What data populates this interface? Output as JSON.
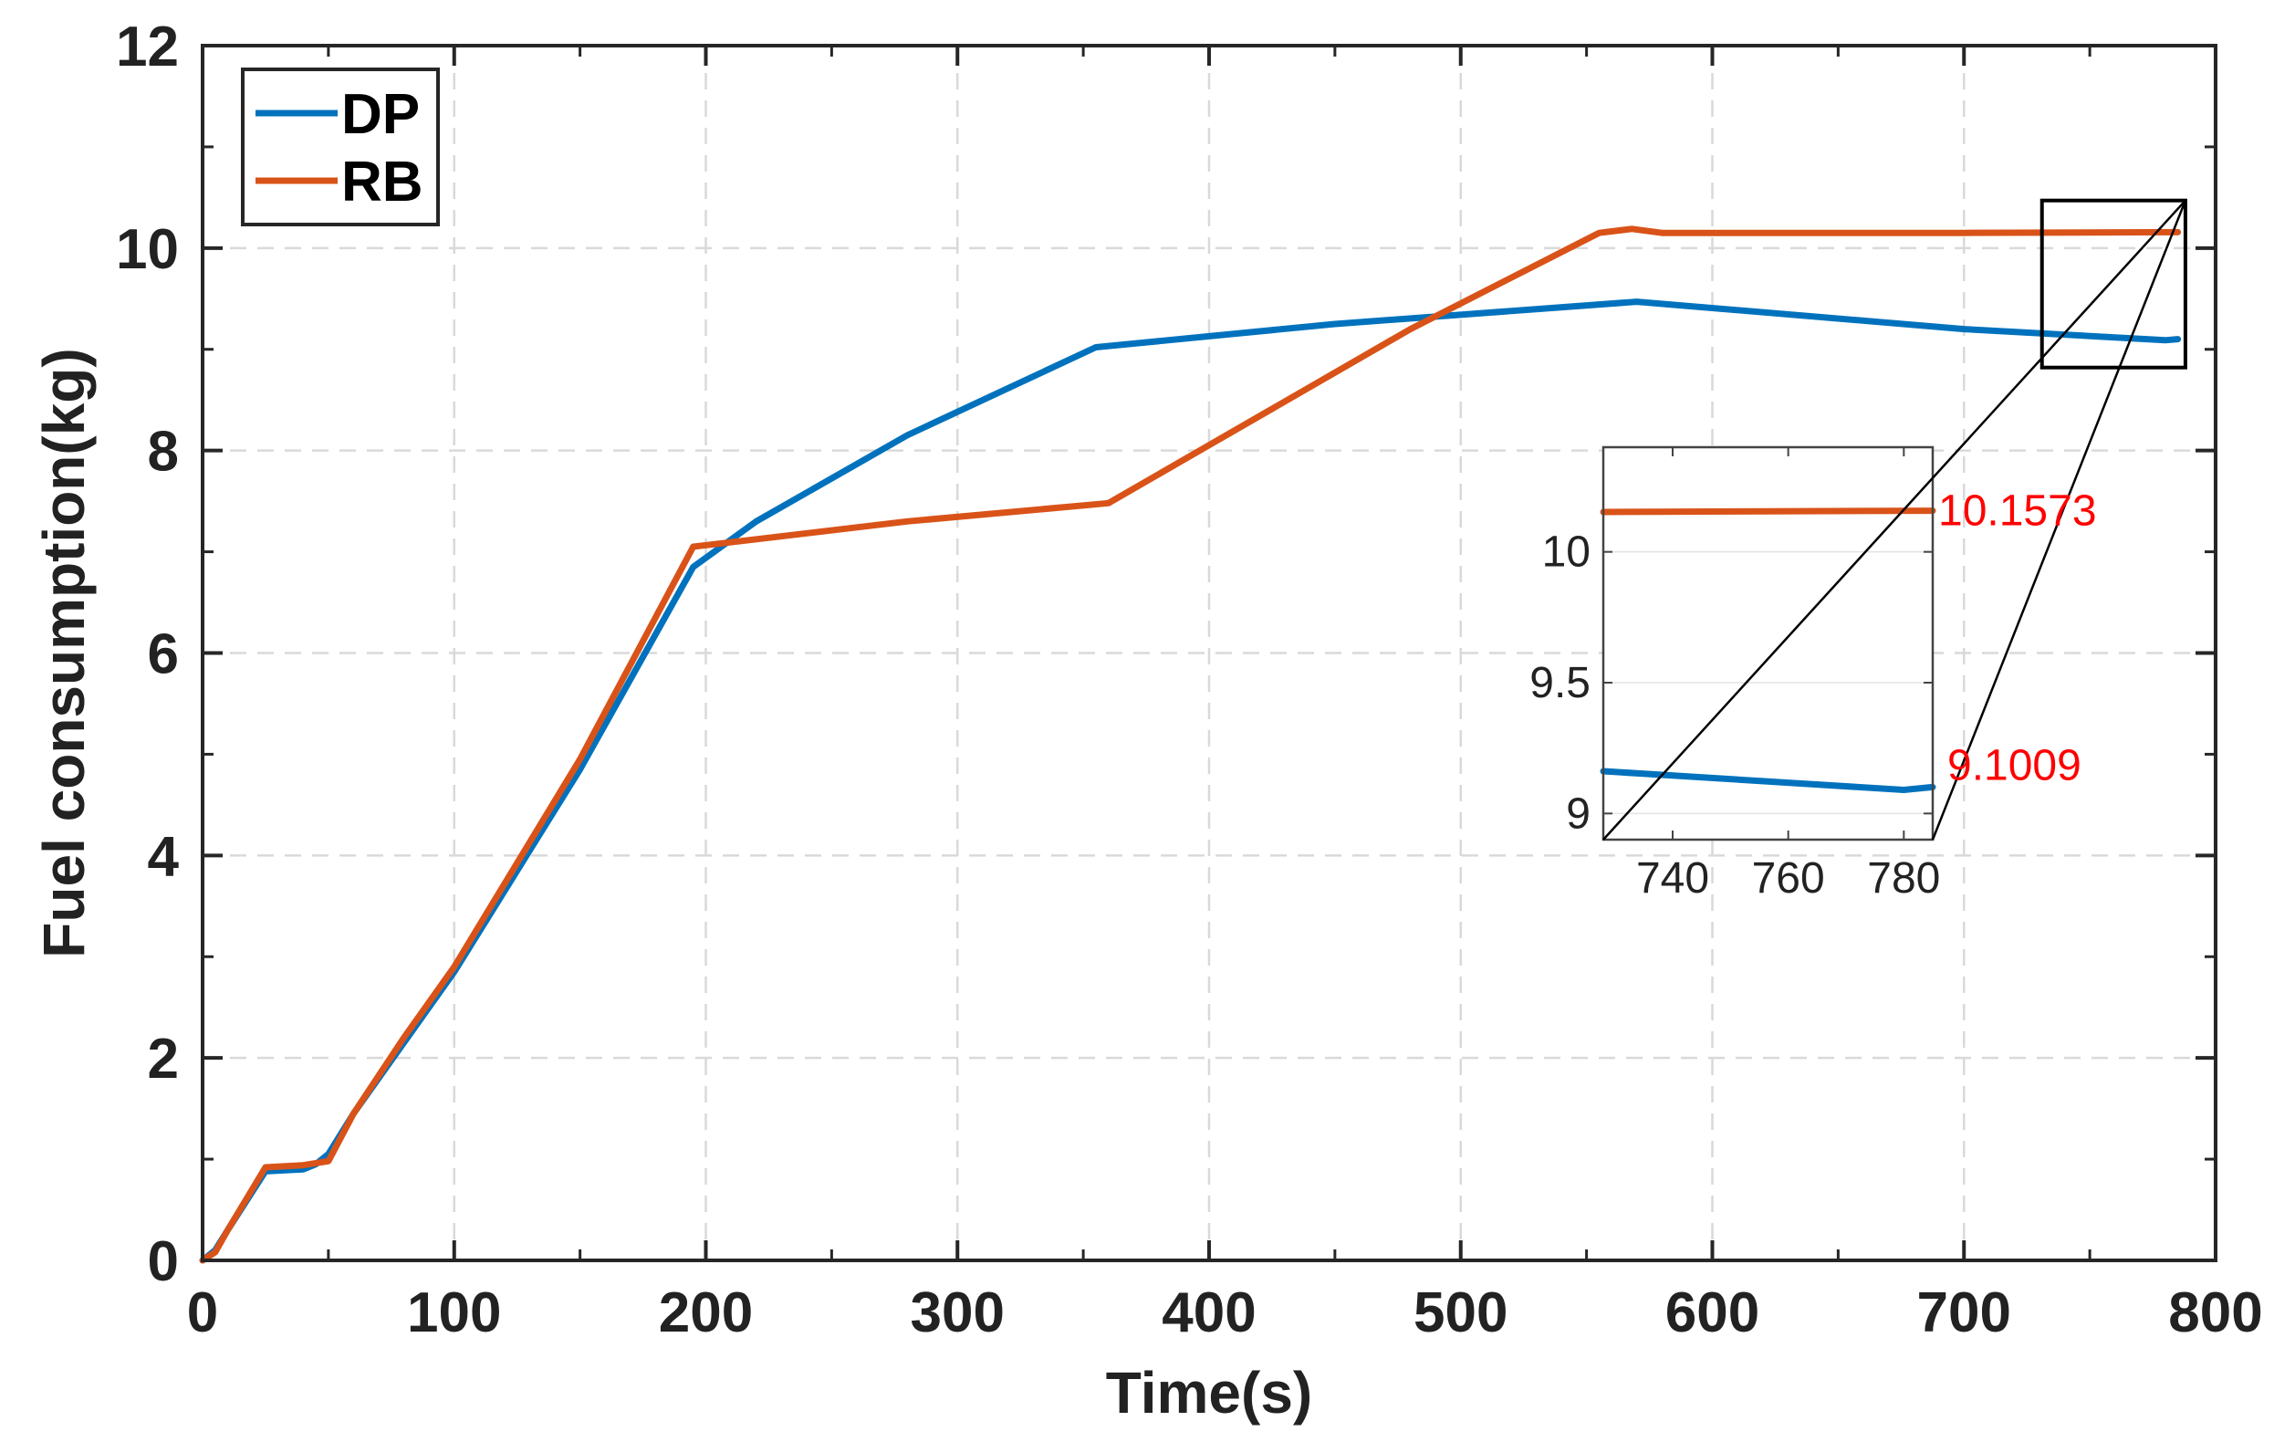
{
  "chart_data": {
    "type": "line",
    "title": "",
    "xlabel": "Time(s)",
    "ylabel": "Fuel consumption(kg)",
    "xlim": [
      0,
      800
    ],
    "ylim": [
      0,
      12
    ],
    "xticks": [
      0,
      100,
      200,
      300,
      400,
      500,
      600,
      700,
      800
    ],
    "yticks": [
      0,
      2,
      4,
      6,
      8,
      10,
      12
    ],
    "grid": true,
    "legend": {
      "position": "top-left",
      "entries": [
        "DP",
        "RB"
      ]
    },
    "series": [
      {
        "name": "DP",
        "color": "#0072BD",
        "x": [
          0,
          5,
          10,
          25,
          40,
          45,
          50,
          60,
          80,
          100,
          150,
          195,
          220,
          280,
          355,
          450,
          570,
          700,
          780,
          785
        ],
        "y": [
          0,
          0.1,
          0.3,
          0.88,
          0.9,
          0.95,
          1.05,
          1.45,
          2.15,
          2.85,
          4.85,
          6.85,
          7.3,
          8.15,
          9.02,
          9.25,
          9.47,
          9.2,
          9.09,
          9.1009
        ]
      },
      {
        "name": "RB",
        "color": "#D95319",
        "x": [
          0,
          5,
          10,
          25,
          40,
          50,
          60,
          80,
          100,
          150,
          195,
          280,
          360,
          480,
          555,
          568,
          580,
          700,
          785
        ],
        "y": [
          0,
          0.08,
          0.3,
          0.92,
          0.94,
          0.98,
          1.45,
          2.2,
          2.9,
          4.95,
          7.05,
          7.3,
          7.48,
          9.2,
          10.15,
          10.19,
          10.15,
          10.15,
          10.1573
        ]
      }
    ],
    "zoom_box": {
      "xlim": [
        731,
        788
      ],
      "ylim": [
        8.82,
        10.47
      ]
    },
    "inset": {
      "xlim": [
        728,
        785
      ],
      "ylim": [
        8.9,
        10.4
      ],
      "xticks": [
        740,
        760,
        780
      ],
      "yticks": [
        9,
        9.5,
        10
      ],
      "ytick_labels": [
        "9",
        "9.5",
        "10"
      ]
    },
    "annotations": [
      {
        "text": "10.1573",
        "color": "#FF0000",
        "series": "RB"
      },
      {
        "text": "9.1009",
        "color": "#FF0000",
        "series": "DP"
      }
    ]
  }
}
